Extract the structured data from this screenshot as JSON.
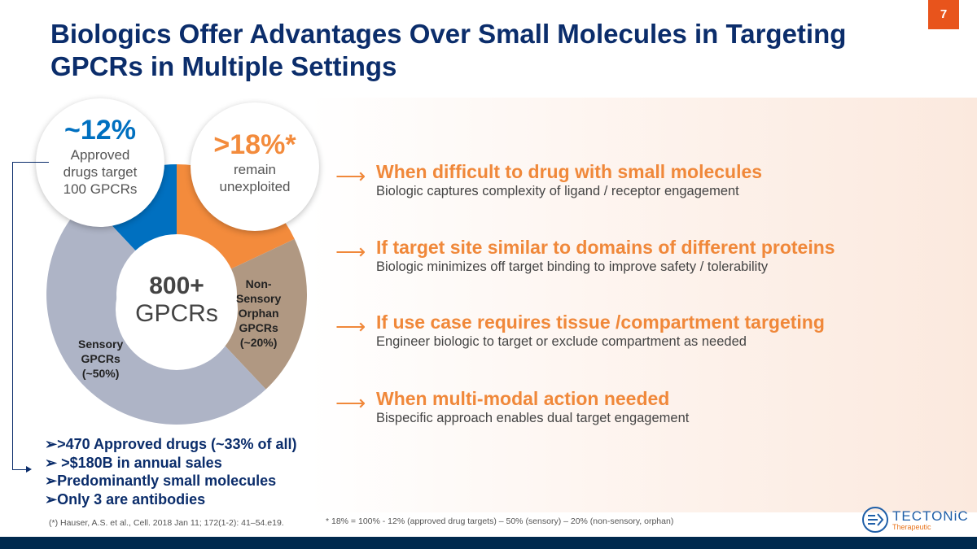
{
  "page_number": "7",
  "title": "Biologics Offer Advantages Over Small Molecules in Targeting GPCRs in Multiple Settings",
  "donut": {
    "center_value": "800+",
    "center_label": "GPCRs",
    "segments": [
      {
        "name": "approved",
        "percent": 12,
        "color": "#0070c0"
      },
      {
        "name": "unexploited",
        "percent": 18,
        "color": "#f38b3c"
      },
      {
        "name": "non-sensory-orphan",
        "percent": 20,
        "color": "#b09882"
      },
      {
        "name": "sensory",
        "percent": 50,
        "color": "#aeb4c6"
      }
    ],
    "labels": {
      "non_sensory": [
        "Non-",
        "Sensory",
        "Orphan",
        "GPCRs",
        "(~20%)"
      ],
      "sensory": [
        "Sensory",
        "GPCRs",
        "(~50%)"
      ]
    }
  },
  "bubble_left": {
    "value": "~12%",
    "lines": [
      "Approved",
      "drugs target",
      "100 GPCRs"
    ],
    "color": "#0070c0"
  },
  "bubble_right": {
    "value": ">18%*",
    "lines": [
      "remain",
      "unexploited"
    ],
    "color": "#f38b3c"
  },
  "bullets": [
    ">470 Approved drugs (~33% of all)",
    " >$180B in annual sales",
    "Predominantly small molecules",
    "Only 3 are antibodies"
  ],
  "items": [
    {
      "title": "When difficult to drug with small molecules",
      "desc": "Biologic captures complexity of ligand / receptor engagement"
    },
    {
      "title": "If target site similar to domains of different proteins",
      "desc": "Biologic minimizes off target binding to improve safety / tolerability"
    },
    {
      "title": "If use case requires tissue /compartment targeting",
      "desc": "Engineer biologic to target or exclude compartment as needed"
    },
    {
      "title": "When multi-modal action needed",
      "desc": "Bispecific approach enables dual target engagement"
    }
  ],
  "footnotes": {
    "citation": "(*) Hauser, A.S. et al., Cell. 2018 Jan 11; 172(1-2): 41–54.e19.",
    "formula": "* 18% = 100% - 12% (approved drug targets) – 50% (sensory) – 20% (non-sensory, orphan)"
  },
  "logo": {
    "name": "TECTONiC",
    "tagline": "Therapeutic"
  }
}
